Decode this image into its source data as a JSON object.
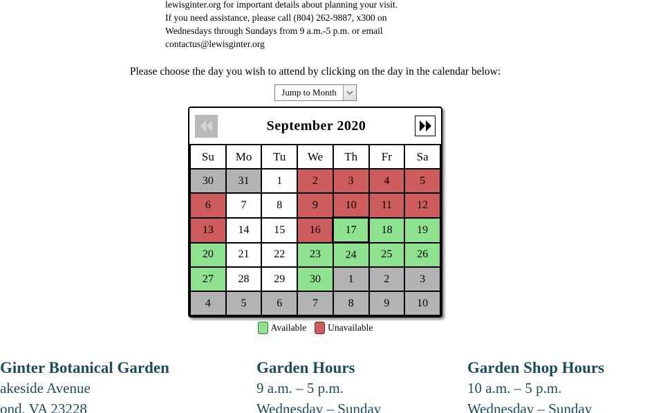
{
  "page": {
    "intro_lines": [
      "lewisginter.org for important details about planning your visit.",
      "If you need assistance, please call (804) 262-9887, x300 on",
      "Wednesdays through Sundays from 9 a.m.-5 p.m. or email",
      "contactus@lewisginter.org"
    ],
    "instruction": "Please choose the day you wish to attend by clicking on the day in the calendar below:"
  },
  "month_select": {
    "value": "Jump to Month"
  },
  "colors": {
    "available": "#8fe28f",
    "unavailable": "#cd5c5c",
    "other": "#b3b3b3",
    "open": "#ffffff",
    "footer_text": "#1d4d59"
  },
  "calendar": {
    "title": "September 2020",
    "day_headers": [
      "Su",
      "Mo",
      "Tu",
      "We",
      "Th",
      "Fr",
      "Sa"
    ],
    "weeks": [
      [
        {
          "day": "30",
          "state": "other"
        },
        {
          "day": "31",
          "state": "other"
        },
        {
          "day": "1",
          "state": "open"
        },
        {
          "day": "2",
          "state": "unavailable"
        },
        {
          "day": "3",
          "state": "unavailable"
        },
        {
          "day": "4",
          "state": "unavailable"
        },
        {
          "day": "5",
          "state": "unavailable"
        }
      ],
      [
        {
          "day": "6",
          "state": "unavailable"
        },
        {
          "day": "7",
          "state": "open"
        },
        {
          "day": "8",
          "state": "open"
        },
        {
          "day": "9",
          "state": "unavailable"
        },
        {
          "day": "10",
          "state": "unavailable"
        },
        {
          "day": "11",
          "state": "unavailable"
        },
        {
          "day": "12",
          "state": "unavailable"
        }
      ],
      [
        {
          "day": "13",
          "state": "unavailable"
        },
        {
          "day": "14",
          "state": "open"
        },
        {
          "day": "15",
          "state": "open"
        },
        {
          "day": "16",
          "state": "unavailable"
        },
        {
          "day": "17",
          "state": "available",
          "today": true
        },
        {
          "day": "18",
          "state": "available"
        },
        {
          "day": "19",
          "state": "available"
        }
      ],
      [
        {
          "day": "20",
          "state": "available"
        },
        {
          "day": "21",
          "state": "open"
        },
        {
          "day": "22",
          "state": "open"
        },
        {
          "day": "23",
          "state": "available"
        },
        {
          "day": "24",
          "state": "available"
        },
        {
          "day": "25",
          "state": "available"
        },
        {
          "day": "26",
          "state": "available"
        }
      ],
      [
        {
          "day": "27",
          "state": "available"
        },
        {
          "day": "28",
          "state": "open"
        },
        {
          "day": "29",
          "state": "open"
        },
        {
          "day": "30",
          "state": "available"
        },
        {
          "day": "1",
          "state": "other"
        },
        {
          "day": "2",
          "state": "other"
        },
        {
          "day": "3",
          "state": "other"
        }
      ],
      [
        {
          "day": "4",
          "state": "other"
        },
        {
          "day": "5",
          "state": "other"
        },
        {
          "day": "6",
          "state": "other"
        },
        {
          "day": "7",
          "state": "other"
        },
        {
          "day": "8",
          "state": "other"
        },
        {
          "day": "9",
          "state": "other"
        },
        {
          "day": "10",
          "state": "other"
        }
      ]
    ],
    "legend": [
      {
        "label": "Available",
        "color": "#8fe28f"
      },
      {
        "label": "Unavailable",
        "color": "#cd5c5c"
      }
    ]
  },
  "footer": {
    "columns": [
      {
        "heading": "Ginter Botanical Garden",
        "lines": [
          "akeside Avenue",
          "ond, VA 23228"
        ]
      },
      {
        "heading": "Garden Hours",
        "lines": [
          "9 a.m. – 5 p.m.",
          "Wednesday – Sunday"
        ]
      },
      {
        "heading": "Garden Shop Hours",
        "lines": [
          "10 a.m. – 5 p.m.",
          "Wednesday – Sunday"
        ]
      }
    ]
  }
}
